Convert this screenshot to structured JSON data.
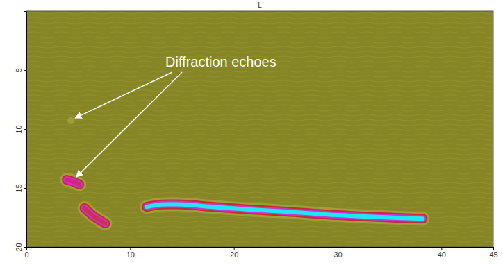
{
  "chart_data": {
    "type": "bscan",
    "title": "L",
    "xlim": [
      0,
      45
    ],
    "xticks": [
      0,
      10,
      20,
      30,
      40,
      45
    ],
    "ylim": [
      0,
      20
    ],
    "yticks": [
      5,
      10,
      15,
      20
    ],
    "series": [
      {
        "x": [
          4.3
        ],
        "y": [
          9.3
        ],
        "color": "#a8a43c"
      },
      {
        "x": [
          3.9,
          4.6,
          5.1
        ],
        "y": [
          14.3,
          14.5,
          14.7
        ],
        "color": "#d8208c"
      },
      {
        "x": [
          5.6,
          6.5,
          7.6
        ],
        "y": [
          16.7,
          17.4,
          18.0
        ],
        "color": "#c83058"
      },
      {
        "x": [
          11.6,
          13,
          15,
          18,
          21,
          25,
          30,
          35,
          38.2
        ],
        "y": [
          16.6,
          16.4,
          16.4,
          16.6,
          16.8,
          17.0,
          17.3,
          17.5,
          17.6
        ],
        "color": "#1ee6f5"
      }
    ],
    "annotations": [
      {
        "text": "Diffraction echoes",
        "x": [
          4.3,
          4.4
        ],
        "y": [
          9.3,
          14.3
        ]
      }
    ]
  }
}
